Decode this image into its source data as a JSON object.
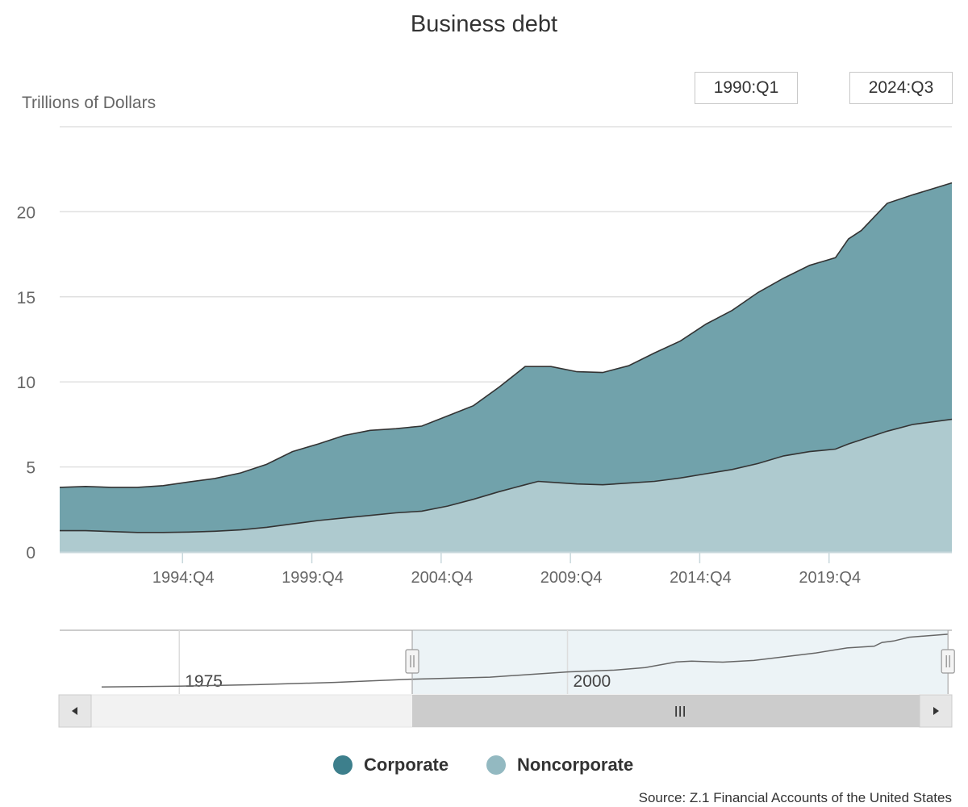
{
  "page": {
    "title": "Business debt",
    "source": "Source: Z.1 Financial Accounts of the United States"
  },
  "range_selector": {
    "from": "1990:Q1",
    "to": "2024:Q3"
  },
  "navigator": {
    "labels": [
      "1975",
      "2000"
    ],
    "scroll_thumb_glyph": "III",
    "scroll_left_glyph": "◂",
    "scroll_right_glyph": "▸",
    "series_trace": [
      {
        "year": 1970,
        "value": 0.55
      },
      {
        "year": 1975,
        "value": 0.9
      },
      {
        "year": 1980,
        "value": 1.5
      },
      {
        "year": 1985,
        "value": 2.4
      },
      {
        "year": 1990,
        "value": 3.7
      },
      {
        "year": 1995,
        "value": 4.5
      },
      {
        "year": 2000,
        "value": 6.6
      },
      {
        "year": 2003,
        "value": 7.3
      },
      {
        "year": 2005,
        "value": 8.3
      },
      {
        "year": 2007,
        "value": 10.6
      },
      {
        "year": 2008,
        "value": 10.9
      },
      {
        "year": 2010,
        "value": 10.5
      },
      {
        "year": 2012,
        "value": 11.2
      },
      {
        "year": 2014,
        "value": 12.7
      },
      {
        "year": 2016,
        "value": 14.2
      },
      {
        "year": 2018,
        "value": 16.2
      },
      {
        "year": 2019.75,
        "value": 16.9
      },
      {
        "year": 2020.25,
        "value": 18.4
      },
      {
        "year": 2021,
        "value": 19.0
      },
      {
        "year": 2022,
        "value": 20.5
      },
      {
        "year": 2023,
        "value": 21.0
      },
      {
        "year": 2024.5,
        "value": 21.7
      }
    ]
  },
  "legend": [
    {
      "name": "Corporate",
      "color": "#3d7f8c"
    },
    {
      "name": "Noncorporate",
      "color": "#93b9c1"
    }
  ],
  "chart_data": {
    "type": "area",
    "stacked": true,
    "title": "Business debt",
    "ylabel": "Trillions of Dollars",
    "xlabel": "",
    "ylim": [
      0,
      25
    ],
    "y_ticks": [
      0,
      5,
      10,
      15,
      20
    ],
    "x_range": [
      "1990:Q1",
      "2024:Q3"
    ],
    "x_tick_labels": [
      "1994:Q4",
      "1999:Q4",
      "2004:Q4",
      "2009:Q4",
      "2014:Q4",
      "2019:Q4"
    ],
    "grid": "horizontal",
    "legend_position": "bottom",
    "series": [
      {
        "name": "Noncorporate",
        "color": "#aecacf",
        "points": [
          [
            "1990:Q1",
            1.25
          ],
          [
            "1991:Q1",
            1.25
          ],
          [
            "1992:Q1",
            1.2
          ],
          [
            "1993:Q1",
            1.15
          ],
          [
            "1994:Q1",
            1.15
          ],
          [
            "1995:Q1",
            1.17
          ],
          [
            "1996:Q1",
            1.22
          ],
          [
            "1997:Q1",
            1.3
          ],
          [
            "1998:Q1",
            1.45
          ],
          [
            "1999:Q1",
            1.65
          ],
          [
            "2000:Q1",
            1.85
          ],
          [
            "2001:Q1",
            2.0
          ],
          [
            "2002:Q1",
            2.15
          ],
          [
            "2003:Q1",
            2.3
          ],
          [
            "2004:Q1",
            2.4
          ],
          [
            "2005:Q1",
            2.7
          ],
          [
            "2006:Q1",
            3.1
          ],
          [
            "2007:Q1",
            3.55
          ],
          [
            "2008:Q1",
            3.95
          ],
          [
            "2008:Q3",
            4.15
          ],
          [
            "2009:Q1",
            4.1
          ],
          [
            "2010:Q1",
            4.0
          ],
          [
            "2011:Q1",
            3.95
          ],
          [
            "2012:Q1",
            4.05
          ],
          [
            "2013:Q1",
            4.15
          ],
          [
            "2014:Q1",
            4.35
          ],
          [
            "2015:Q1",
            4.6
          ],
          [
            "2016:Q1",
            4.85
          ],
          [
            "2017:Q1",
            5.2
          ],
          [
            "2018:Q1",
            5.65
          ],
          [
            "2019:Q1",
            5.9
          ],
          [
            "2020:Q1",
            6.05
          ],
          [
            "2020:Q3",
            6.35
          ],
          [
            "2021:Q1",
            6.6
          ],
          [
            "2022:Q1",
            7.1
          ],
          [
            "2023:Q1",
            7.5
          ],
          [
            "2024:Q3",
            7.8
          ]
        ]
      },
      {
        "name": "Corporate",
        "color": "#71a2ab",
        "points": [
          [
            "1990:Q1",
            2.55
          ],
          [
            "1991:Q1",
            2.6
          ],
          [
            "1992:Q1",
            2.6
          ],
          [
            "1993:Q1",
            2.65
          ],
          [
            "1994:Q1",
            2.75
          ],
          [
            "1995:Q1",
            2.95
          ],
          [
            "1996:Q1",
            3.1
          ],
          [
            "1997:Q1",
            3.35
          ],
          [
            "1998:Q1",
            3.7
          ],
          [
            "1999:Q1",
            4.25
          ],
          [
            "2000:Q1",
            4.5
          ],
          [
            "2001:Q1",
            4.85
          ],
          [
            "2002:Q1",
            5.0
          ],
          [
            "2003:Q1",
            4.95
          ],
          [
            "2004:Q1",
            5.0
          ],
          [
            "2005:Q1",
            5.3
          ],
          [
            "2006:Q1",
            5.5
          ],
          [
            "2007:Q1",
            6.15
          ],
          [
            "2008:Q1",
            6.95
          ],
          [
            "2008:Q3",
            6.75
          ],
          [
            "2009:Q1",
            6.8
          ],
          [
            "2010:Q1",
            6.6
          ],
          [
            "2011:Q1",
            6.6
          ],
          [
            "2012:Q1",
            6.9
          ],
          [
            "2013:Q1",
            7.55
          ],
          [
            "2014:Q1",
            8.05
          ],
          [
            "2015:Q1",
            8.8
          ],
          [
            "2016:Q1",
            9.35
          ],
          [
            "2017:Q1",
            10.05
          ],
          [
            "2018:Q1",
            10.45
          ],
          [
            "2019:Q1",
            10.95
          ],
          [
            "2020:Q1",
            11.25
          ],
          [
            "2020:Q3",
            12.05
          ],
          [
            "2021:Q1",
            12.3
          ],
          [
            "2022:Q1",
            13.4
          ],
          [
            "2023:Q1",
            13.5
          ],
          [
            "2024:Q3",
            13.9
          ]
        ]
      }
    ]
  }
}
